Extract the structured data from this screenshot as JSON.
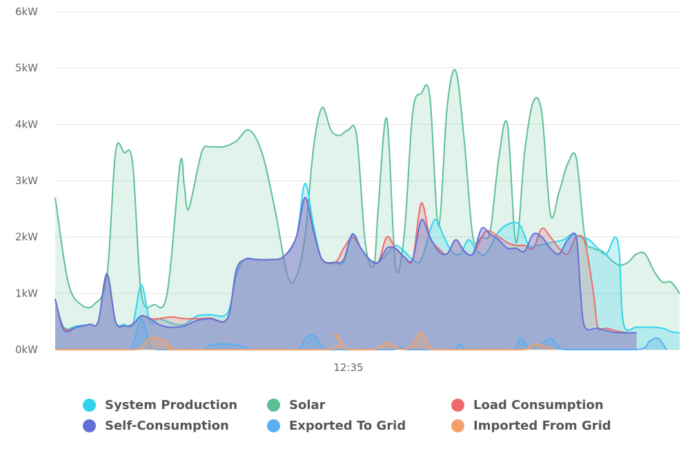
{
  "chart_data": {
    "type": "area",
    "title": "",
    "xlabel": "",
    "ylabel": "",
    "y_unit": "kW",
    "ylim": [
      0,
      6
    ],
    "y_ticks": [
      "0kW",
      "1kW",
      "2kW",
      "3kW",
      "4kW",
      "5kW",
      "6kW"
    ],
    "x_ticks": [
      "12:35"
    ],
    "grid": "horizontal",
    "legend_position": "bottom",
    "series": [
      {
        "name": "Solar",
        "color": "#5cbf96",
        "fill_opacity": 0.18,
        "values": [
          [
            0,
            2.7
          ],
          [
            3,
            1.2
          ],
          [
            6,
            0.8
          ],
          [
            9,
            0.8
          ],
          [
            12,
            1.3
          ],
          [
            14,
            3.5
          ],
          [
            16,
            3.5
          ],
          [
            18,
            3.3
          ],
          [
            20,
            1.0
          ],
          [
            23,
            0.8
          ],
          [
            26,
            1.0
          ],
          [
            29,
            3.3
          ],
          [
            30,
            2.9
          ],
          [
            31,
            2.5
          ],
          [
            34,
            3.5
          ],
          [
            36,
            3.6
          ],
          [
            39,
            3.6
          ],
          [
            42,
            3.7
          ],
          [
            45,
            3.9
          ],
          [
            48,
            3.5
          ],
          [
            51,
            2.5
          ],
          [
            54,
            1.3
          ],
          [
            56,
            1.3
          ],
          [
            58,
            2.0
          ],
          [
            60,
            3.6
          ],
          [
            62,
            4.3
          ],
          [
            64,
            3.9
          ],
          [
            66,
            3.8
          ],
          [
            68,
            3.9
          ],
          [
            70,
            3.8
          ],
          [
            72,
            1.9
          ],
          [
            74,
            1.5
          ],
          [
            75,
            2.5
          ],
          [
            77,
            4.1
          ],
          [
            79,
            1.5
          ],
          [
            81,
            2.0
          ],
          [
            83,
            4.2
          ],
          [
            85,
            4.55
          ],
          [
            87,
            4.5
          ],
          [
            89,
            2.2
          ],
          [
            91,
            4.3
          ],
          [
            93,
            4.95
          ],
          [
            95,
            3.7
          ],
          [
            97,
            2.0
          ],
          [
            99,
            2.0
          ],
          [
            101,
            2.1
          ],
          [
            103,
            3.4
          ],
          [
            105,
            4.0
          ],
          [
            107,
            1.9
          ],
          [
            109,
            3.5
          ],
          [
            111,
            4.4
          ],
          [
            113,
            4.2
          ],
          [
            115,
            2.4
          ],
          [
            117,
            2.8
          ],
          [
            119,
            3.3
          ],
          [
            121,
            3.4
          ],
          [
            123,
            2.0
          ],
          [
            125,
            1.8
          ],
          [
            127,
            1.75
          ],
          [
            129,
            1.6
          ],
          [
            131,
            1.5
          ],
          [
            133,
            1.55
          ],
          [
            135,
            1.7
          ],
          [
            137,
            1.7
          ],
          [
            139,
            1.4
          ],
          [
            141,
            1.2
          ],
          [
            143,
            1.2
          ],
          [
            145,
            1.0
          ]
        ]
      },
      {
        "name": "System Production",
        "color": "#2fd4ea",
        "fill_opacity": 0.25,
        "values": [
          [
            0,
            0.9
          ],
          [
            2,
            0.4
          ],
          [
            5,
            0.42
          ],
          [
            8,
            0.45
          ],
          [
            10,
            0.5
          ],
          [
            12,
            1.35
          ],
          [
            14,
            0.5
          ],
          [
            16,
            0.45
          ],
          [
            18,
            0.45
          ],
          [
            20,
            1.15
          ],
          [
            22,
            0.5
          ],
          [
            24,
            0.55
          ],
          [
            26,
            0.5
          ],
          [
            28,
            0.45
          ],
          [
            30,
            0.45
          ],
          [
            33,
            0.6
          ],
          [
            36,
            0.62
          ],
          [
            40,
            0.65
          ],
          [
            42,
            1.3
          ],
          [
            44,
            1.6
          ],
          [
            47,
            1.6
          ],
          [
            50,
            1.6
          ],
          [
            53,
            1.65
          ],
          [
            56,
            2.0
          ],
          [
            58,
            2.95
          ],
          [
            60,
            2.2
          ],
          [
            62,
            1.6
          ],
          [
            65,
            1.55
          ],
          [
            67,
            1.55
          ],
          [
            69,
            2.05
          ],
          [
            71,
            1.8
          ],
          [
            73,
            1.6
          ],
          [
            75,
            1.55
          ],
          [
            77,
            1.7
          ],
          [
            79,
            1.85
          ],
          [
            81,
            1.75
          ],
          [
            83,
            1.6
          ],
          [
            85,
            1.6
          ],
          [
            88,
            2.3
          ],
          [
            90,
            2.05
          ],
          [
            92,
            1.75
          ],
          [
            94,
            1.7
          ],
          [
            96,
            1.95
          ],
          [
            98,
            1.75
          ],
          [
            100,
            1.7
          ],
          [
            103,
            2.1
          ],
          [
            106,
            2.25
          ],
          [
            108,
            2.2
          ],
          [
            110,
            1.85
          ],
          [
            112,
            1.85
          ],
          [
            115,
            1.9
          ],
          [
            118,
            1.95
          ],
          [
            120,
            2.05
          ],
          [
            122,
            2.0
          ],
          [
            124,
            1.95
          ],
          [
            126,
            1.8
          ],
          [
            128,
            1.7
          ],
          [
            130,
            2.0
          ],
          [
            131,
            1.7
          ],
          [
            132,
            0.45
          ],
          [
            135,
            0.4
          ],
          [
            138,
            0.4
          ],
          [
            141,
            0.38
          ],
          [
            143,
            0.32
          ],
          [
            145,
            0.3
          ]
        ]
      },
      {
        "name": "Load Consumption",
        "color": "#ef6b6b",
        "fill_opacity": 0.22,
        "values": [
          [
            0,
            0.9
          ],
          [
            2,
            0.38
          ],
          [
            5,
            0.4
          ],
          [
            8,
            0.45
          ],
          [
            10,
            0.5
          ],
          [
            12,
            1.35
          ],
          [
            14,
            0.5
          ],
          [
            16,
            0.42
          ],
          [
            18,
            0.45
          ],
          [
            20,
            0.6
          ],
          [
            22,
            0.55
          ],
          [
            24,
            0.55
          ],
          [
            27,
            0.58
          ],
          [
            30,
            0.55
          ],
          [
            33,
            0.55
          ],
          [
            36,
            0.56
          ],
          [
            40,
            0.56
          ],
          [
            42,
            1.4
          ],
          [
            44,
            1.6
          ],
          [
            47,
            1.6
          ],
          [
            50,
            1.6
          ],
          [
            53,
            1.65
          ],
          [
            56,
            2.0
          ],
          [
            58,
            2.7
          ],
          [
            60,
            2.1
          ],
          [
            62,
            1.6
          ],
          [
            65,
            1.55
          ],
          [
            67,
            1.8
          ],
          [
            69,
            2.0
          ],
          [
            71,
            1.8
          ],
          [
            73,
            1.6
          ],
          [
            75,
            1.55
          ],
          [
            77,
            2.0
          ],
          [
            79,
            1.8
          ],
          [
            81,
            1.65
          ],
          [
            83,
            1.6
          ],
          [
            85,
            2.6
          ],
          [
            87,
            2.0
          ],
          [
            89,
            1.8
          ],
          [
            91,
            1.7
          ],
          [
            93,
            1.95
          ],
          [
            95,
            1.75
          ],
          [
            97,
            1.7
          ],
          [
            100,
            2.1
          ],
          [
            103,
            2.0
          ],
          [
            105,
            1.9
          ],
          [
            107,
            1.85
          ],
          [
            109,
            1.85
          ],
          [
            111,
            1.8
          ],
          [
            113,
            2.15
          ],
          [
            115,
            2.0
          ],
          [
            117,
            1.8
          ],
          [
            119,
            1.7
          ],
          [
            121,
            2.0
          ],
          [
            123,
            1.9
          ],
          [
            125,
            1.0
          ],
          [
            126,
            0.4
          ],
          [
            128,
            0.38
          ],
          [
            131,
            0.32
          ],
          [
            133,
            0.3
          ],
          [
            135,
            0.3
          ]
        ]
      },
      {
        "name": "Self-Consumption",
        "color": "#6470d6",
        "fill_opacity": 0.35,
        "values": [
          [
            0,
            0.9
          ],
          [
            2,
            0.35
          ],
          [
            5,
            0.4
          ],
          [
            8,
            0.45
          ],
          [
            10,
            0.5
          ],
          [
            12,
            1.35
          ],
          [
            14,
            0.5
          ],
          [
            16,
            0.42
          ],
          [
            18,
            0.45
          ],
          [
            20,
            0.6
          ],
          [
            22,
            0.55
          ],
          [
            24,
            0.45
          ],
          [
            26,
            0.4
          ],
          [
            28,
            0.4
          ],
          [
            30,
            0.42
          ],
          [
            33,
            0.52
          ],
          [
            36,
            0.55
          ],
          [
            40,
            0.55
          ],
          [
            42,
            1.4
          ],
          [
            44,
            1.6
          ],
          [
            47,
            1.6
          ],
          [
            50,
            1.6
          ],
          [
            53,
            1.65
          ],
          [
            56,
            2.0
          ],
          [
            58,
            2.7
          ],
          [
            60,
            2.1
          ],
          [
            62,
            1.6
          ],
          [
            65,
            1.55
          ],
          [
            67,
            1.6
          ],
          [
            69,
            2.05
          ],
          [
            71,
            1.8
          ],
          [
            73,
            1.6
          ],
          [
            75,
            1.55
          ],
          [
            77,
            1.8
          ],
          [
            79,
            1.8
          ],
          [
            81,
            1.65
          ],
          [
            83,
            1.6
          ],
          [
            85,
            2.3
          ],
          [
            87,
            2.0
          ],
          [
            89,
            1.75
          ],
          [
            91,
            1.7
          ],
          [
            93,
            1.95
          ],
          [
            95,
            1.75
          ],
          [
            97,
            1.7
          ],
          [
            99,
            2.15
          ],
          [
            101,
            2.05
          ],
          [
            103,
            1.95
          ],
          [
            105,
            1.8
          ],
          [
            107,
            1.8
          ],
          [
            109,
            1.75
          ],
          [
            111,
            2.05
          ],
          [
            113,
            2.0
          ],
          [
            115,
            1.8
          ],
          [
            117,
            1.7
          ],
          [
            119,
            1.95
          ],
          [
            121,
            2.0
          ],
          [
            122,
            1.0
          ],
          [
            123,
            0.4
          ],
          [
            126,
            0.38
          ],
          [
            129,
            0.32
          ],
          [
            131,
            0.3
          ],
          [
            135,
            0.3
          ]
        ]
      },
      {
        "name": "Exported To Grid",
        "color": "#5aaef2",
        "fill_opacity": 0.35,
        "values": [
          [
            0,
            0
          ],
          [
            16,
            0
          ],
          [
            18,
            0.1
          ],
          [
            20,
            0.55
          ],
          [
            22,
            0.1
          ],
          [
            24,
            0
          ],
          [
            34,
            0
          ],
          [
            36,
            0.08
          ],
          [
            40,
            0.1
          ],
          [
            44,
            0.05
          ],
          [
            46,
            0
          ],
          [
            56,
            0
          ],
          [
            58,
            0.2
          ],
          [
            60,
            0.25
          ],
          [
            62,
            0.05
          ],
          [
            64,
            0
          ],
          [
            78,
            0
          ],
          [
            80,
            0.05
          ],
          [
            82,
            0
          ],
          [
            92,
            0
          ],
          [
            94,
            0.1
          ],
          [
            96,
            0
          ],
          [
            106,
            0
          ],
          [
            108,
            0.2
          ],
          [
            110,
            0.05
          ],
          [
            113,
            0.1
          ],
          [
            115,
            0.2
          ],
          [
            117,
            0.05
          ],
          [
            119,
            0
          ],
          [
            135,
            0
          ],
          [
            138,
            0.15
          ],
          [
            140,
            0.2
          ],
          [
            142,
            0
          ]
        ]
      },
      {
        "name": "Imported From Grid",
        "color": "#f4a06a",
        "fill_opacity": 0.35,
        "values": [
          [
            0,
            0
          ],
          [
            18,
            0
          ],
          [
            20,
            0.05
          ],
          [
            22,
            0.2
          ],
          [
            25,
            0.18
          ],
          [
            27,
            0.05
          ],
          [
            29,
            0
          ],
          [
            63,
            0
          ],
          [
            65,
            0.28
          ],
          [
            67,
            0.05
          ],
          [
            69,
            0
          ],
          [
            74,
            0
          ],
          [
            77,
            0.12
          ],
          [
            79,
            0.05
          ],
          [
            81,
            0
          ],
          [
            83,
            0.1
          ],
          [
            85,
            0.3
          ],
          [
            87,
            0.05
          ],
          [
            89,
            0
          ],
          [
            108,
            0
          ],
          [
            110,
            0.05
          ],
          [
            112,
            0.1
          ],
          [
            114,
            0.05
          ],
          [
            116,
            0
          ]
        ]
      }
    ]
  },
  "legend": {
    "items": [
      {
        "label": "System Production",
        "color": "#2fd4ea"
      },
      {
        "label": "Solar",
        "color": "#5cbf96"
      },
      {
        "label": "Load Consumption",
        "color": "#ef6b6b"
      },
      {
        "label": "Self-Consumption",
        "color": "#6470d6"
      },
      {
        "label": "Exported To Grid",
        "color": "#5aaef2"
      },
      {
        "label": "Imported From Grid",
        "color": "#f4a06a"
      }
    ]
  }
}
